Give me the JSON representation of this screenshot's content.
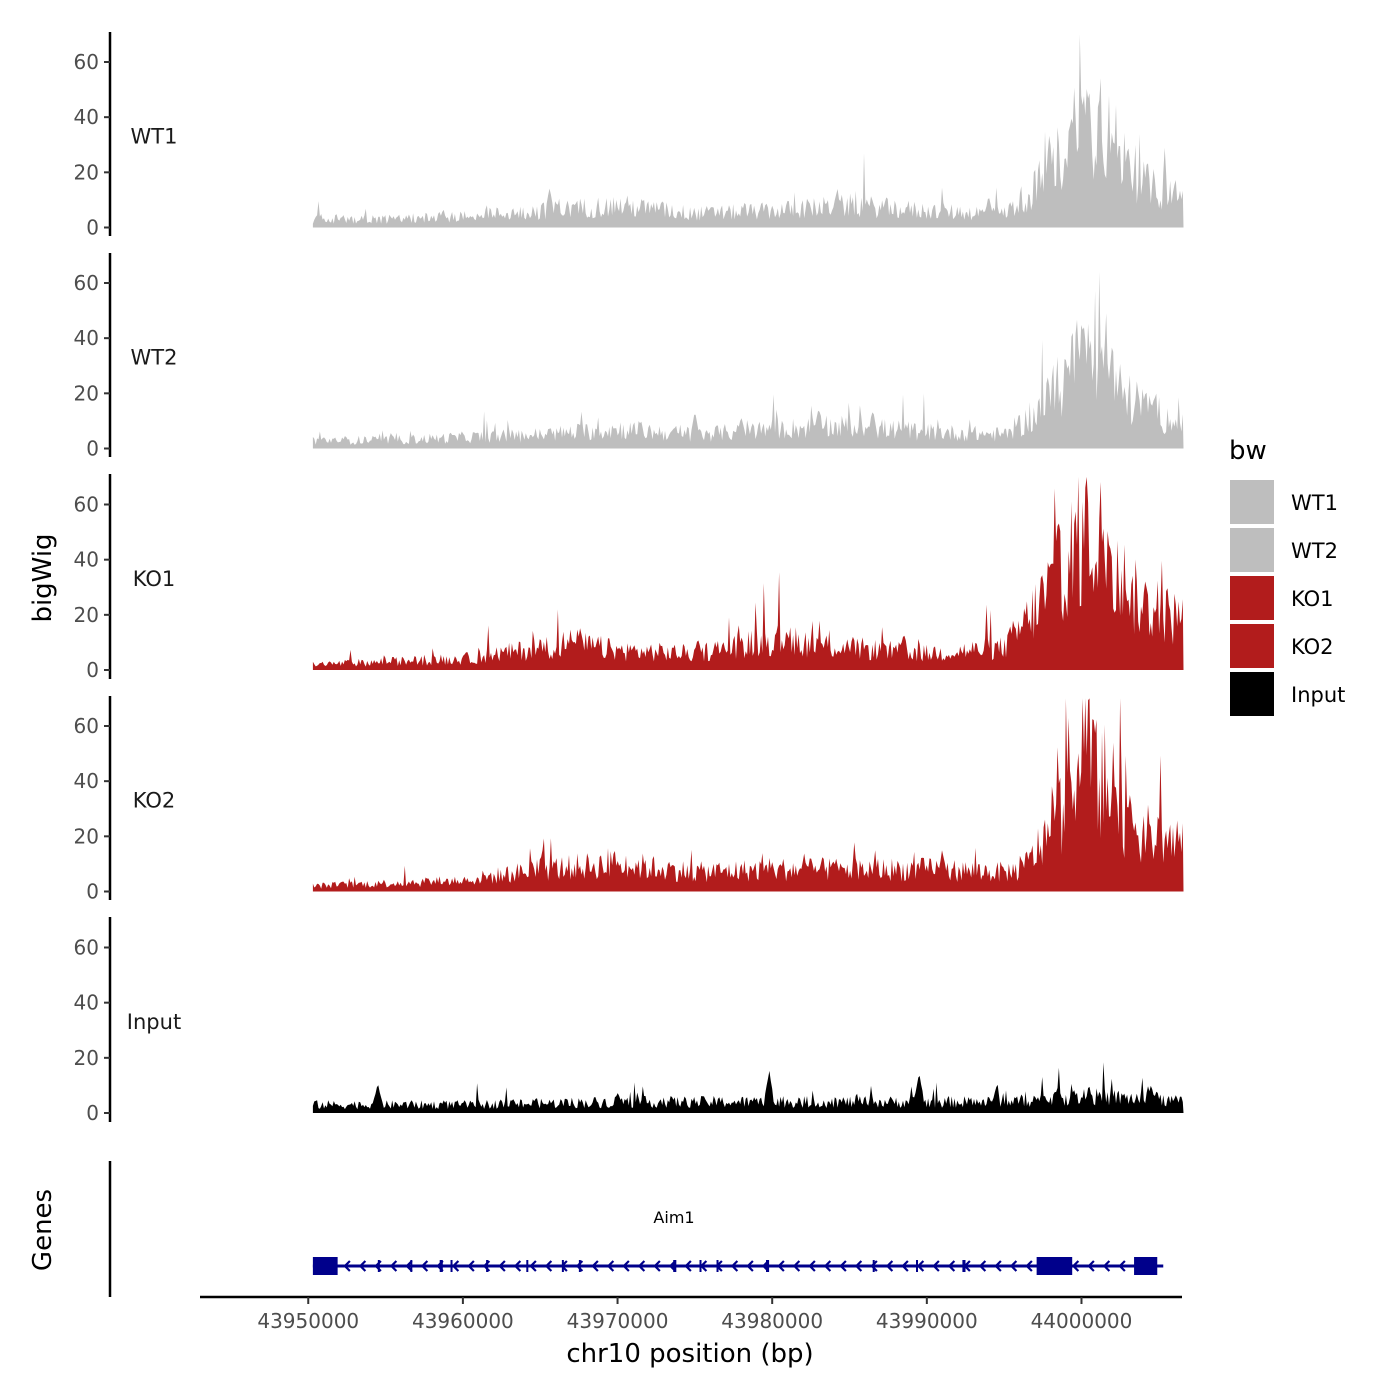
{
  "chart_data": {
    "type": "area",
    "title": "",
    "ylabel": "bigWig",
    "genes_label": "Genes",
    "xlabel": "chr10 position (bp)",
    "xlim": [
      43943000,
      44006500
    ],
    "data_range": [
      43950300,
      44006600
    ],
    "ylim": [
      0,
      70
    ],
    "y_ticks": [
      0,
      20,
      40,
      60
    ],
    "x_ticks": [
      43950000,
      43960000,
      43970000,
      43980000,
      43990000,
      44000000
    ],
    "x_tick_labels": [
      "43950000",
      "43960000",
      "43970000",
      "43980000",
      "43990000",
      "44000000"
    ],
    "legend": {
      "title": "bw",
      "entries": [
        {
          "label": "WT1",
          "color": "#bebebe"
        },
        {
          "label": "WT2",
          "color": "#bebebe"
        },
        {
          "label": "KO1",
          "color": "#b21c1c"
        },
        {
          "label": "KO2",
          "color": "#b21c1c"
        },
        {
          "label": "Input",
          "color": "#000000"
        }
      ]
    },
    "series": [
      {
        "name": "WT1",
        "color": "#bebebe",
        "profile": [
          [
            43950300,
            3
          ],
          [
            43955000,
            3
          ],
          [
            43960000,
            4
          ],
          [
            43965000,
            6
          ],
          [
            43970000,
            8
          ],
          [
            43975000,
            5
          ],
          [
            43980000,
            6
          ],
          [
            43985000,
            8
          ],
          [
            43990000,
            6
          ],
          [
            43995000,
            5
          ],
          [
            43997000,
            14
          ],
          [
            43998500,
            25
          ],
          [
            44000000,
            38
          ],
          [
            44001500,
            36
          ],
          [
            44003000,
            22
          ],
          [
            44004500,
            14
          ],
          [
            44006600,
            12
          ]
        ],
        "peaks": [
          [
            43965600,
            15
          ],
          [
            43984200,
            15
          ],
          [
            43994000,
            12
          ],
          [
            43999500,
            48
          ],
          [
            44000400,
            51
          ],
          [
            44001200,
            46
          ],
          [
            44003000,
            34
          ]
        ]
      },
      {
        "name": "WT2",
        "color": "#bebebe",
        "profile": [
          [
            43950300,
            3
          ],
          [
            43955000,
            3
          ],
          [
            43960000,
            4
          ],
          [
            43965000,
            5
          ],
          [
            43970000,
            7
          ],
          [
            43975000,
            5
          ],
          [
            43980000,
            7
          ],
          [
            43985000,
            8
          ],
          [
            43990000,
            6
          ],
          [
            43995000,
            5
          ],
          [
            43997000,
            12
          ],
          [
            43998500,
            22
          ],
          [
            44000000,
            33
          ],
          [
            44001500,
            28
          ],
          [
            44003000,
            18
          ],
          [
            44004500,
            14
          ],
          [
            44006600,
            8
          ]
        ],
        "peaks": [
          [
            43975000,
            14
          ],
          [
            43978000,
            12
          ],
          [
            43983000,
            16
          ],
          [
            43986500,
            15
          ],
          [
            43999400,
            36
          ],
          [
            44000200,
            44
          ],
          [
            44001300,
            41
          ],
          [
            44002500,
            31
          ],
          [
            44003600,
            25
          ],
          [
            44004700,
            21
          ]
        ]
      },
      {
        "name": "KO1",
        "color": "#b21c1c",
        "profile": [
          [
            43950300,
            2
          ],
          [
            43955000,
            3
          ],
          [
            43960000,
            4
          ],
          [
            43965000,
            8
          ],
          [
            43967000,
            10
          ],
          [
            43970000,
            7
          ],
          [
            43975000,
            6
          ],
          [
            43978000,
            9
          ],
          [
            43980000,
            11
          ],
          [
            43985000,
            8
          ],
          [
            43990000,
            6
          ],
          [
            43995000,
            8
          ],
          [
            43996500,
            18
          ],
          [
            43998000,
            30
          ],
          [
            44000000,
            48
          ],
          [
            44001800,
            46
          ],
          [
            44003000,
            28
          ],
          [
            44004500,
            22
          ],
          [
            44006600,
            18
          ]
        ],
        "peaks": [
          [
            43967600,
            16
          ],
          [
            43975200,
            12
          ],
          [
            43981000,
            14
          ],
          [
            43988500,
            14
          ],
          [
            43999600,
            40
          ],
          [
            44000300,
            68
          ],
          [
            44001400,
            55
          ],
          [
            44001800,
            52
          ],
          [
            44003000,
            29
          ]
        ]
      },
      {
        "name": "KO2",
        "color": "#b21c1c",
        "profile": [
          [
            43950300,
            2
          ],
          [
            43955000,
            3
          ],
          [
            43960000,
            4
          ],
          [
            43965000,
            8
          ],
          [
            43970000,
            10
          ],
          [
            43975000,
            7
          ],
          [
            43980000,
            8
          ],
          [
            43985000,
            8
          ],
          [
            43990000,
            8
          ],
          [
            43995000,
            7
          ],
          [
            43996200,
            8
          ],
          [
            43997500,
            18
          ],
          [
            43999000,
            32
          ],
          [
            44000500,
            48
          ],
          [
            44002000,
            36
          ],
          [
            44003000,
            24
          ],
          [
            44004500,
            20
          ],
          [
            44006600,
            18
          ]
        ],
        "peaks": [
          [
            43970000,
            12
          ],
          [
            43980000,
            11
          ],
          [
            43991000,
            16
          ],
          [
            43999500,
            34
          ],
          [
            44000100,
            64
          ],
          [
            44000800,
            64
          ],
          [
            44002000,
            40
          ],
          [
            44003500,
            26
          ]
        ]
      },
      {
        "name": "Input",
        "color": "#000000",
        "profile": [
          [
            43950300,
            3
          ],
          [
            43960000,
            3
          ],
          [
            43970000,
            4
          ],
          [
            43980000,
            4
          ],
          [
            43990000,
            4
          ],
          [
            43995000,
            4
          ],
          [
            44000000,
            6
          ],
          [
            44005000,
            5
          ],
          [
            44006500,
            4
          ]
        ],
        "peaks": [
          [
            43954500,
            11
          ],
          [
            43970000,
            8
          ],
          [
            43979800,
            16
          ],
          [
            43989500,
            15
          ],
          [
            43994500,
            10
          ],
          [
            43998500,
            11
          ],
          [
            44000500,
            10
          ],
          [
            44004500,
            11
          ]
        ]
      }
    ],
    "gene_track": {
      "gene_name": "Aim1",
      "color": "#00008b",
      "start": 43950300,
      "end": 44004900,
      "strand": "-",
      "exons": [
        [
          43950300,
          43951900
        ],
        [
          43954500,
          43954600
        ],
        [
          43956600,
          43956700
        ],
        [
          43958500,
          43958700
        ],
        [
          43959200,
          43959300
        ],
        [
          43961500,
          43961600
        ],
        [
          43964100,
          43964200
        ],
        [
          43966400,
          43966500
        ],
        [
          43967500,
          43967600
        ],
        [
          43973600,
          43973800
        ],
        [
          43975300,
          43975400
        ],
        [
          43976400,
          43976500
        ],
        [
          43979600,
          43979800
        ],
        [
          43986500,
          43986600
        ],
        [
          43989300,
          43989400
        ],
        [
          43992300,
          43992500
        ],
        [
          43997100,
          43999400
        ],
        [
          44003400,
          44004900
        ]
      ]
    }
  }
}
